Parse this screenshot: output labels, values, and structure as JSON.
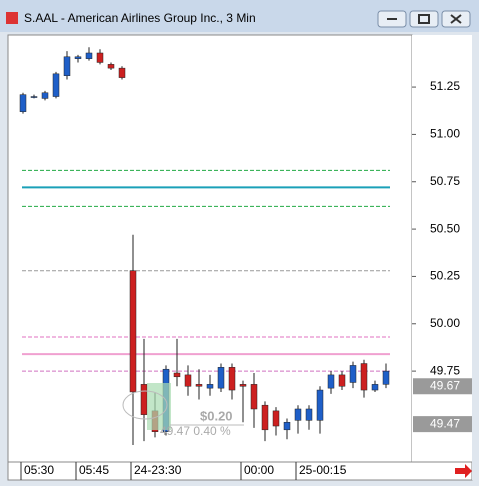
{
  "chart_data": {
    "type": "candlestick",
    "title": "S.AAL - American Airlines Group Inc., 3 Min",
    "categories": [
      "05:30",
      null,
      null,
      null,
      null,
      "05:45",
      null,
      null,
      null,
      null,
      "24-23:30",
      null,
      null,
      null,
      null,
      null,
      null,
      null,
      null,
      null,
      "00:00",
      null,
      null,
      null,
      null,
      "25-00:15",
      null,
      null,
      null,
      null,
      null,
      null,
      null,
      null
    ],
    "open": [
      51.12,
      51.2,
      51.19,
      51.2,
      51.31,
      51.4,
      51.4,
      51.43,
      51.37,
      51.35,
      50.28,
      49.68,
      49.54,
      49.43,
      49.74,
      49.73,
      49.68,
      49.66,
      49.66,
      49.77,
      49.68,
      49.68,
      49.57,
      49.54,
      49.44,
      49.49,
      49.49,
      49.49,
      49.66,
      49.73,
      49.69,
      49.79,
      49.65,
      49.68
    ],
    "high": [
      51.22,
      51.21,
      51.23,
      51.33,
      51.44,
      51.42,
      51.46,
      51.45,
      51.38,
      51.36,
      50.47,
      49.92,
      49.64,
      49.78,
      49.92,
      49.78,
      49.76,
      49.73,
      49.79,
      49.79,
      49.7,
      49.74,
      49.59,
      49.56,
      49.5,
      49.57,
      49.57,
      49.67,
      49.75,
      49.75,
      49.8,
      49.81,
      49.7,
      49.79
    ],
    "low": [
      51.11,
      51.19,
      51.18,
      51.19,
      51.29,
      51.38,
      51.39,
      51.37,
      51.34,
      51.29,
      49.36,
      49.38,
      49.4,
      49.41,
      49.67,
      49.62,
      49.6,
      49.62,
      49.64,
      49.6,
      49.48,
      49.45,
      49.38,
      49.41,
      49.39,
      49.42,
      49.44,
      49.42,
      49.63,
      49.65,
      49.66,
      49.61,
      49.64,
      49.66
    ],
    "close": [
      51.21,
      51.2,
      51.22,
      51.32,
      51.41,
      51.41,
      51.43,
      51.38,
      51.35,
      51.3,
      49.64,
      49.52,
      49.43,
      49.76,
      49.72,
      49.67,
      49.67,
      49.68,
      49.77,
      49.65,
      49.67,
      49.55,
      49.44,
      49.46,
      49.48,
      49.55,
      49.55,
      49.65,
      49.73,
      49.67,
      49.78,
      49.65,
      49.68,
      49.75
    ],
    "up_color": "#1f5fc8",
    "down_color": "#cc2020",
    "ylim": [
      49.27,
      51.525
    ],
    "yticks": [
      49.75,
      {
        "value": 50,
        "label": "50.00"
      },
      50.25,
      {
        "value": 50.5,
        "label": "50.50"
      },
      50.75,
      {
        "value": 51,
        "label": "51.00"
      },
      51.25
    ],
    "levels": [
      {
        "value": 50.81,
        "color": "#22aa44",
        "style": "dashed"
      },
      {
        "value": 50.72,
        "color": "#1aa0b8",
        "style": "solid"
      },
      {
        "value": 50.62,
        "color": "#22aa44",
        "style": "dashed"
      },
      {
        "value": 50.28,
        "color": "#999999",
        "style": "dashed"
      },
      {
        "value": 49.93,
        "color": "#e070c0",
        "style": "dashed"
      },
      {
        "value": 49.84,
        "color": "#f0a0d0",
        "style": "solid"
      },
      {
        "value": 49.75,
        "color": "#d070c0",
        "style": "dashed"
      }
    ],
    "price_labels": [
      49.67,
      49.47
    ],
    "annotations": [
      "$0.20",
      "49.47 0.40 %"
    ]
  }
}
